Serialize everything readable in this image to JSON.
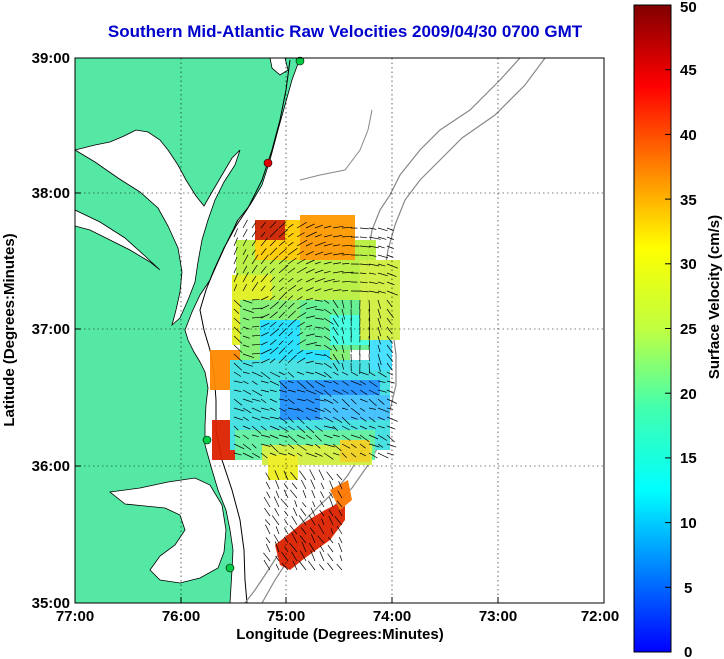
{
  "title": "Southern Mid-Atlantic Raw Velocities 2009/04/30 0700 GMT",
  "map": {
    "xlabel": "Longitude (Degrees:Minutes)",
    "ylabel": "Latitude (Degrees:Minutes)",
    "x_ticks": [
      "77:00",
      "76:00",
      "75:00",
      "74:00",
      "73:00",
      "72:00"
    ],
    "y_ticks": [
      "39:00",
      "38:00",
      "37:00",
      "36:00",
      "35:00"
    ],
    "lon_range": [
      -77,
      -72
    ],
    "lat_range": [
      35,
      39
    ],
    "land_color": "#55e8a5",
    "grid": "dotted"
  },
  "colorbar": {
    "label": "Surface Velocity (cm/s)",
    "ticks": [
      "50",
      "45",
      "40",
      "35",
      "30",
      "25",
      "20",
      "15",
      "10",
      "5",
      "0"
    ],
    "range": [
      0,
      50
    ],
    "colormap": "jet"
  },
  "stations": [
    {
      "color": "#00cc44"
    },
    {
      "color": "#dd0000"
    },
    {
      "color": "#00cc44"
    },
    {
      "color": "#00cc44"
    }
  ]
}
